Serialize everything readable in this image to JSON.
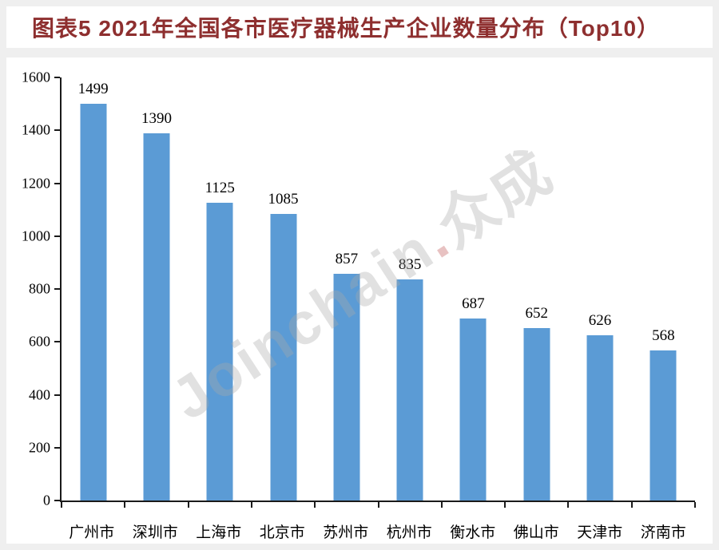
{
  "header": {
    "title": "图表5 2021年全国各市医疗器械生产企业数量分布（Top10）"
  },
  "watermark": {
    "latin": "Joinchain",
    "dot": ".",
    "cjk": "众成"
  },
  "colors": {
    "title_text": "#8e2f2f",
    "bar_fill": "#5B9BD5",
    "axis": "#1a1a1a",
    "card_background": "#ffffff",
    "frame_background": "#efefef",
    "watermark_gray": "#a8a8a8"
  },
  "chart_data": {
    "type": "bar",
    "title": "图表5 2021年全国各市医疗器械生产企业数量分布（Top10）",
    "categories": [
      "广州市",
      "深圳市",
      "上海市",
      "北京市",
      "苏州市",
      "杭州市",
      "衡水市",
      "佛山市",
      "天津市",
      "济南市"
    ],
    "values": [
      1499,
      1390,
      1125,
      1085,
      857,
      835,
      687,
      652,
      626,
      568
    ],
    "xlabel": "",
    "ylabel": "",
    "ylim": [
      0,
      1600
    ],
    "yticks": [
      0,
      200,
      400,
      600,
      800,
      1000,
      1200,
      1400,
      1600
    ],
    "grid": false,
    "legend": null,
    "bar_color": "#5B9BD5",
    "data_labels_shown": true
  }
}
